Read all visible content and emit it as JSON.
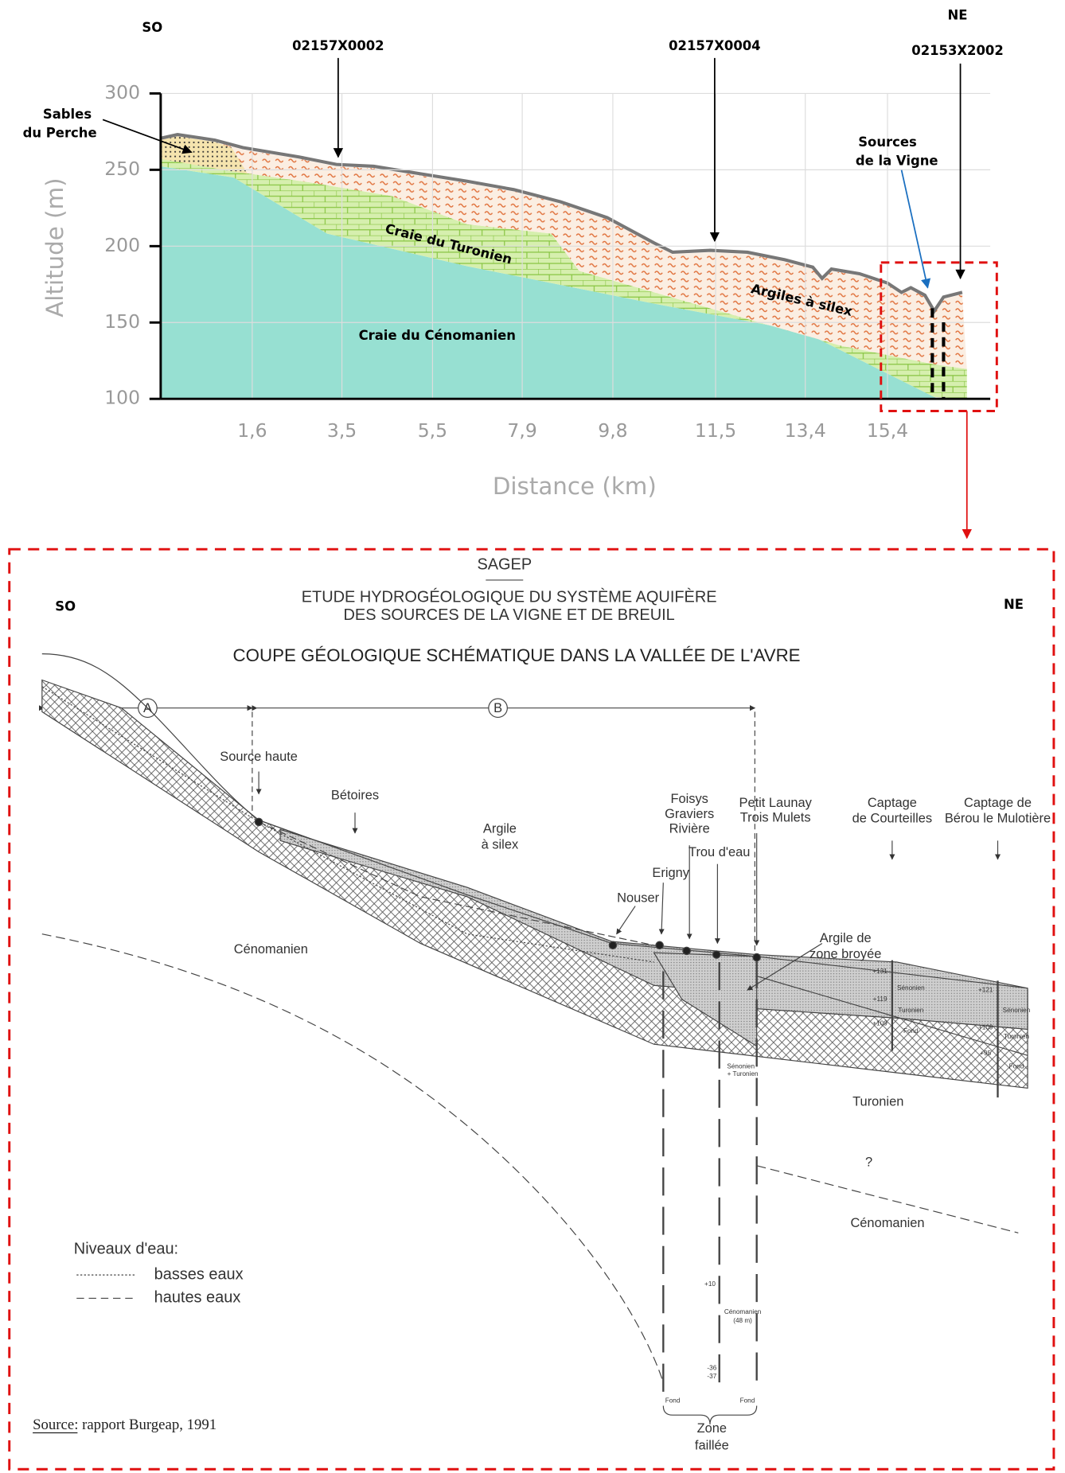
{
  "profile": {
    "direction_left": "SO",
    "direction_right": "NE",
    "wells": [
      "02157X0002",
      "02157X0004",
      "02153X2002"
    ],
    "sables": [
      "Sables",
      "du Perche"
    ],
    "sources": [
      "Sources",
      "de la Vigne"
    ],
    "layers": [
      "Craie du Turonien",
      "Argiles à silex",
      "Craie du Cénomanien"
    ],
    "y_axis": {
      "title": "Altitude (m)",
      "ticks": [
        "300",
        "250",
        "200",
        "150",
        "100"
      ]
    },
    "x_axis": {
      "title": "Distance (km)",
      "ticks": [
        "1,6",
        "3,5",
        "5,5",
        "7,9",
        "9,8",
        "11,5",
        "13,4",
        "15,4"
      ]
    }
  },
  "section": {
    "direction_left": "SO",
    "direction_right": "NE",
    "organisation": "SAGEP",
    "study": [
      "ETUDE HYDROGÉOLOGIQUE DU SYSTÈME AQUIFÈRE",
      "DES SOURCES DE LA VIGNE ET DE BREUIL"
    ],
    "title": "COUPE GÉOLOGIQUE SCHÉMATIQUE DANS LA VALLÉE DE L'AVRE",
    "zones": [
      "A",
      "B"
    ],
    "source_haute": "Source haute",
    "betoires": "Bétoires",
    "argile_silex": [
      "Argile",
      "à silex"
    ],
    "foisys": [
      "Foisys",
      "Graviers",
      "Rivière"
    ],
    "petit_launay": [
      "Petit Launay",
      "Trois Mulets"
    ],
    "courteilles": [
      "Captage",
      "de Courteilles"
    ],
    "berou": [
      "Captage de",
      "Bérou le Mulotière"
    ],
    "trou_eau": "Trou d'eau",
    "erigny": "Erigny",
    "nouser": "Nouser",
    "argile_zone": [
      "Argile de",
      "zone broyée"
    ],
    "cenomanien_left": "Cénomanien",
    "turonien": "Turonien",
    "cenomanien_right": "Cénomanien",
    "senonien_turonien": [
      "Sénonien",
      "+ Turonien"
    ],
    "question": "?",
    "cenomanien_48": [
      "Cénomanien",
      "(48 m)"
    ],
    "level_plus10": "+10",
    "levels_fault": [
      "-36",
      "-37"
    ],
    "fond": [
      "Fond",
      "Fond"
    ],
    "courteilles_log": [
      "+131",
      "Sénonien",
      "+119",
      "Turonien",
      "+109",
      "Fond"
    ],
    "berou_log": [
      "+121",
      "Sénonien",
      "+109",
      "Turonien",
      "+95",
      "Fond"
    ],
    "legend": {
      "title": "Niveaux d'eau:",
      "items": [
        "basses eaux",
        "hautes eaux"
      ]
    },
    "source_label": "Source",
    "source_text": ": rapport Burgeap, 1991",
    "zone_faillee": [
      "Zone",
      "faillée"
    ]
  }
}
